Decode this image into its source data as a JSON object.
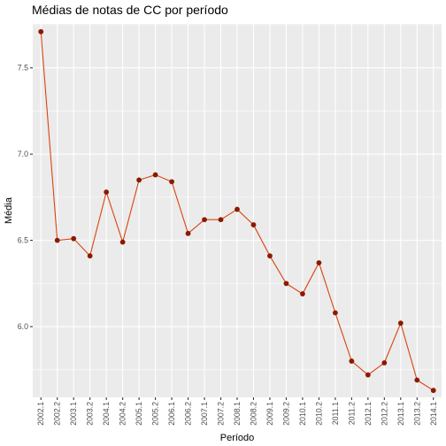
{
  "chart_data": {
    "type": "line",
    "title": "Médias de notas de CC por período",
    "xlabel": "Período",
    "ylabel": "Média",
    "categories": [
      "2002.1",
      "2002.2",
      "2003.1",
      "2003.2",
      "2004.1",
      "2004.2",
      "2005.1",
      "2005.2",
      "2006.1",
      "2006.2",
      "2007.1",
      "2007.2",
      "2008.1",
      "2008.2",
      "2009.1",
      "2009.2",
      "2010.1",
      "2010.2",
      "2011.1",
      "2011.2",
      "2012.1",
      "2012.2",
      "2013.1",
      "2013.2",
      "2014.1"
    ],
    "series": [
      {
        "values": [
          7.71,
          6.5,
          6.51,
          6.41,
          6.78,
          6.49,
          6.85,
          6.88,
          6.84,
          6.54,
          6.62,
          6.62,
          6.68,
          6.59,
          6.41,
          6.25,
          6.19,
          6.37,
          6.08,
          5.8,
          5.72,
          5.79,
          6.02,
          5.69,
          5.63
        ]
      }
    ],
    "y_ticks": [
      6.0,
      6.5,
      7.0,
      7.5
    ],
    "ylim": [
      5.59,
      7.755
    ],
    "grid": true,
    "colors": {
      "panel_background": "#ebebeb",
      "grid_line": "#ffffff",
      "line": "#d9440f",
      "point": "#8b1a00"
    }
  }
}
